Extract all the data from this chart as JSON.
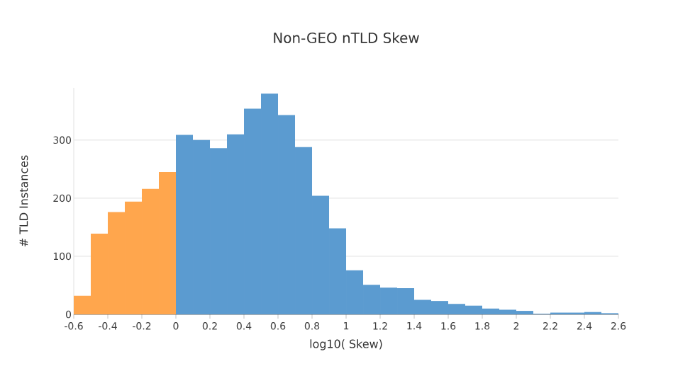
{
  "chart_data": {
    "type": "histogram",
    "title": "Non-GEO nTLD Skew",
    "xlabel": "log10( Skew)",
    "ylabel": "# TLD Instances",
    "bins": [
      -0.6,
      -0.5,
      -0.4,
      -0.3,
      -0.2,
      -0.1,
      0,
      0.1,
      0.2,
      0.3,
      0.4,
      0.5,
      0.6,
      0.7,
      0.8,
      0.9,
      1.0,
      1.1,
      1.2,
      1.3,
      1.4,
      1.5,
      1.6,
      1.7,
      1.8,
      1.9,
      2.0,
      2.1,
      2.2,
      2.3,
      2.4,
      2.5,
      2.6
    ],
    "series": [
      {
        "color": "#ffa64d",
        "values": [
          32,
          139,
          176,
          194,
          216,
          245,
          null,
          null,
          null,
          null,
          null,
          null,
          null,
          null,
          null,
          null,
          null,
          null,
          null,
          null,
          null,
          null,
          null,
          null,
          null,
          null,
          null,
          null,
          null,
          null,
          null,
          null
        ]
      },
      {
        "color": "#5b9bd0",
        "values": [
          null,
          null,
          null,
          null,
          null,
          null,
          309,
          300,
          286,
          310,
          354,
          380,
          343,
          288,
          204,
          148,
          76,
          51,
          46,
          45,
          25,
          23,
          18,
          15,
          10,
          8,
          6,
          1,
          3,
          3,
          4,
          2
        ]
      }
    ],
    "xlim": [
      -0.6,
      2.6
    ],
    "ylim": [
      0,
      390
    ],
    "xticks": [
      -0.6,
      -0.4,
      -0.2,
      0,
      0.2,
      0.4,
      0.6,
      0.8,
      1,
      1.2,
      1.4,
      1.6,
      1.8,
      2,
      2.2,
      2.4,
      2.6
    ],
    "yticks": [
      0,
      100,
      200,
      300
    ],
    "grid": "y"
  }
}
